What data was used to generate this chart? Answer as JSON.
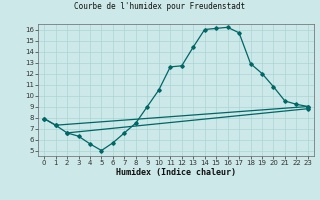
{
  "title": "Courbe de l'humidex pour Freudenstadt",
  "xlabel": "Humidex (Indice chaleur)",
  "bg_color": "#cce8e8",
  "line_color": "#006666",
  "grid_color": "#aad4d4",
  "xlim": [
    -0.5,
    23.5
  ],
  "ylim": [
    4.5,
    16.5
  ],
  "xticks": [
    0,
    1,
    2,
    3,
    4,
    5,
    6,
    7,
    8,
    9,
    10,
    11,
    12,
    13,
    14,
    15,
    16,
    17,
    18,
    19,
    20,
    21,
    22,
    23
  ],
  "yticks": [
    5,
    6,
    7,
    8,
    9,
    10,
    11,
    12,
    13,
    14,
    15,
    16
  ],
  "curve1_x": [
    0,
    1,
    2,
    3,
    4,
    5,
    6,
    7,
    8,
    9,
    10,
    11,
    12,
    13,
    14,
    15,
    16,
    17,
    18,
    19,
    20,
    21,
    22,
    23
  ],
  "curve1_y": [
    7.9,
    7.3,
    6.6,
    6.3,
    5.6,
    5.0,
    5.7,
    6.6,
    7.5,
    9.0,
    10.5,
    12.6,
    12.7,
    14.4,
    16.0,
    16.1,
    16.2,
    15.7,
    12.9,
    12.0,
    10.8,
    9.5,
    9.2,
    9.0
  ],
  "curve2_x": [
    0,
    1,
    23
  ],
  "curve2_y": [
    7.9,
    7.3,
    9.0
  ],
  "curve3_x": [
    2,
    23
  ],
  "curve3_y": [
    6.6,
    8.8
  ],
  "tick_fontsize": 5.0,
  "xlabel_fontsize": 6.0,
  "title_fontsize": 5.5
}
